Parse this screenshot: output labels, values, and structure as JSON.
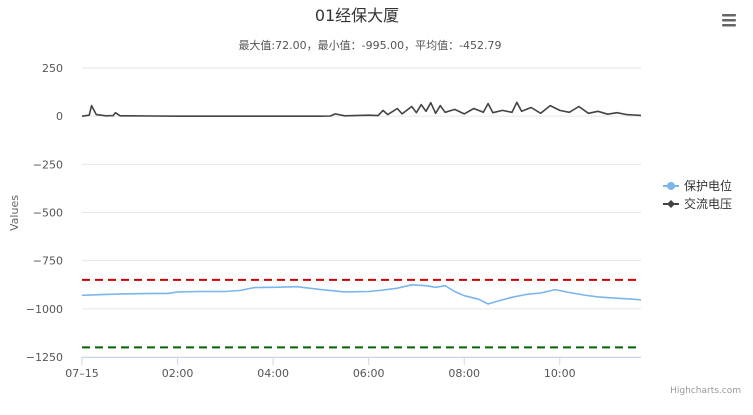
{
  "chart_data": {
    "type": "line",
    "title": "01经保大厦",
    "subtitle": "最大值:72.00，最小值：-995.00，平均值：-452.79",
    "ylabel": "Values",
    "xlabel": "",
    "ylim": [
      -1250,
      250
    ],
    "y_ticks": [
      "250",
      "0",
      "-250",
      "-500",
      "-750",
      "-1000",
      "-1250"
    ],
    "x_ticks": [
      "07-15",
      "02:00",
      "04:00",
      "06:00",
      "08:00",
      "10:00"
    ],
    "x_tick_hours": [
      0,
      2,
      4,
      6,
      8,
      10
    ],
    "xlim_hours": [
      0,
      11.7
    ],
    "grid": true,
    "legend_position": "right",
    "plot_lines": [
      {
        "value": -850,
        "color": "#cc0000",
        "style": "dashed"
      },
      {
        "value": -1200,
        "color": "#006600",
        "style": "dashed"
      }
    ],
    "series": [
      {
        "name": "保护电位",
        "color": "#7cb5ec",
        "marker": "circle",
        "x": [
          0,
          0.5,
          1.0,
          1.5,
          1.8,
          2.0,
          2.5,
          3.0,
          3.3,
          3.6,
          4.0,
          4.5,
          5.0,
          5.5,
          6.0,
          6.3,
          6.6,
          6.9,
          7.2,
          7.4,
          7.6,
          7.8,
          8.0,
          8.3,
          8.5,
          8.7,
          9.0,
          9.3,
          9.6,
          9.9,
          10.2,
          10.5,
          10.8,
          11.1,
          11.4,
          11.7
        ],
        "values": [
          -930,
          -925,
          -922,
          -920,
          -920,
          -912,
          -910,
          -910,
          -905,
          -890,
          -888,
          -885,
          -900,
          -912,
          -910,
          -903,
          -893,
          -875,
          -880,
          -888,
          -880,
          -910,
          -932,
          -950,
          -975,
          -960,
          -940,
          -925,
          -918,
          -900,
          -915,
          -928,
          -938,
          -943,
          -948,
          -953
        ]
      },
      {
        "name": "交流电压",
        "color": "#434348",
        "marker": "diamond",
        "x": [
          0,
          0.15,
          0.2,
          0.3,
          0.5,
          0.65,
          0.7,
          0.8,
          1.5,
          2.0,
          3.0,
          4.0,
          5.0,
          5.2,
          5.3,
          5.5,
          6.0,
          6.2,
          6.3,
          6.4,
          6.6,
          6.7,
          6.9,
          7.0,
          7.1,
          7.2,
          7.3,
          7.4,
          7.5,
          7.6,
          7.8,
          8.0,
          8.2,
          8.4,
          8.5,
          8.6,
          8.8,
          9.0,
          9.1,
          9.2,
          9.4,
          9.6,
          9.8,
          10.0,
          10.2,
          10.4,
          10.6,
          10.8,
          11.0,
          11.2,
          11.4,
          11.7
        ],
        "values": [
          0,
          5,
          55,
          8,
          2,
          3,
          18,
          2,
          1,
          0,
          0,
          0,
          0,
          1,
          12,
          2,
          5,
          3,
          30,
          8,
          40,
          12,
          50,
          18,
          60,
          25,
          70,
          15,
          55,
          20,
          35,
          12,
          40,
          20,
          65,
          18,
          30,
          20,
          72,
          25,
          45,
          15,
          55,
          30,
          20,
          50,
          15,
          25,
          10,
          18,
          8,
          4
        ]
      }
    ]
  },
  "credits": "Highcharts.com",
  "menu_icon": "hamburger-menu-icon"
}
